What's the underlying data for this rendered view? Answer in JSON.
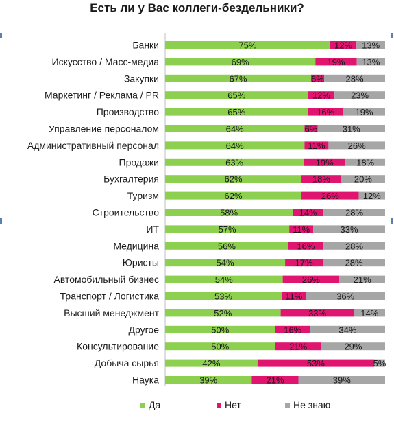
{
  "chart_data": {
    "type": "bar",
    "orientation": "horizontal",
    "stacked": "100%",
    "title": "Есть ли у Вас коллеги-бездельники?",
    "categories": [
      "Банки",
      "Искусство / Масс-медиа",
      "Закупки",
      "Маркетинг / Реклама / PR",
      "Производство",
      "Управление персоналом",
      "Административный персонал",
      "Продажи",
      "Бухгалтерия",
      "Туризм",
      "Строительство",
      "ИТ",
      "Медицина",
      "Юристы",
      "Автомобильный бизнес",
      "Транспорт / Логистика",
      "Высший менеджмент",
      "Другое",
      "Консультирование",
      "Добыча сырья",
      "Наука"
    ],
    "series": [
      {
        "name": "Да",
        "color": "#8dcf4f",
        "values": [
          75,
          69,
          67,
          65,
          65,
          64,
          64,
          63,
          62,
          62,
          58,
          57,
          56,
          54,
          54,
          53,
          52,
          50,
          50,
          42,
          39
        ],
        "labels": [
          "75%",
          "69%",
          "67%",
          "65%",
          "65%",
          "64%",
          "64%",
          "63%",
          "62%",
          "62%",
          "58%",
          "57%",
          "56%",
          "54%",
          "54%",
          "53%",
          "52%",
          "50%",
          "50%",
          "42%",
          "39%"
        ]
      },
      {
        "name": "Нет",
        "color": "#e0156f",
        "values": [
          12,
          19,
          6,
          12,
          16,
          6,
          11,
          19,
          18,
          26,
          14,
          11,
          16,
          17,
          26,
          11,
          33,
          16,
          21,
          53,
          21
        ],
        "labels": [
          "12%",
          "19%",
          "6%",
          "12%",
          "16%",
          "6%",
          "11%",
          "19%",
          "18%",
          "26%",
          "14%",
          "11%",
          "16%",
          "17%",
          "26%",
          "11%",
          "33%",
          "16%",
          "21%",
          "53%",
          "21%"
        ]
      },
      {
        "name": "Не знаю",
        "color": "#a6a6a6",
        "values": [
          13,
          13,
          28,
          23,
          19,
          31,
          26,
          18,
          20,
          12,
          28,
          33,
          28,
          28,
          21,
          36,
          14,
          34,
          29,
          5,
          39
        ],
        "labels": [
          "13%",
          "13%",
          "28%",
          "23%",
          "19%",
          "31%",
          "26%",
          "18%",
          "20%",
          "12%",
          "28%",
          "33%",
          "28%",
          "28%",
          "21%",
          "36%",
          "14%",
          "34%",
          "29%",
          "5%",
          "39%"
        ]
      }
    ],
    "xlim": [
      0,
      100
    ],
    "grid": false,
    "legend_position": "bottom"
  }
}
